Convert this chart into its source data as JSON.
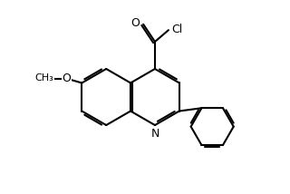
{
  "bg_color": "#ffffff",
  "line_color": "#000000",
  "line_width": 1.5,
  "font_size": 9,
  "atom_labels": {
    "N": "N",
    "O_carbonyl": "O",
    "Cl": "Cl",
    "O_methoxy": "O",
    "CH3": "CH₃"
  }
}
